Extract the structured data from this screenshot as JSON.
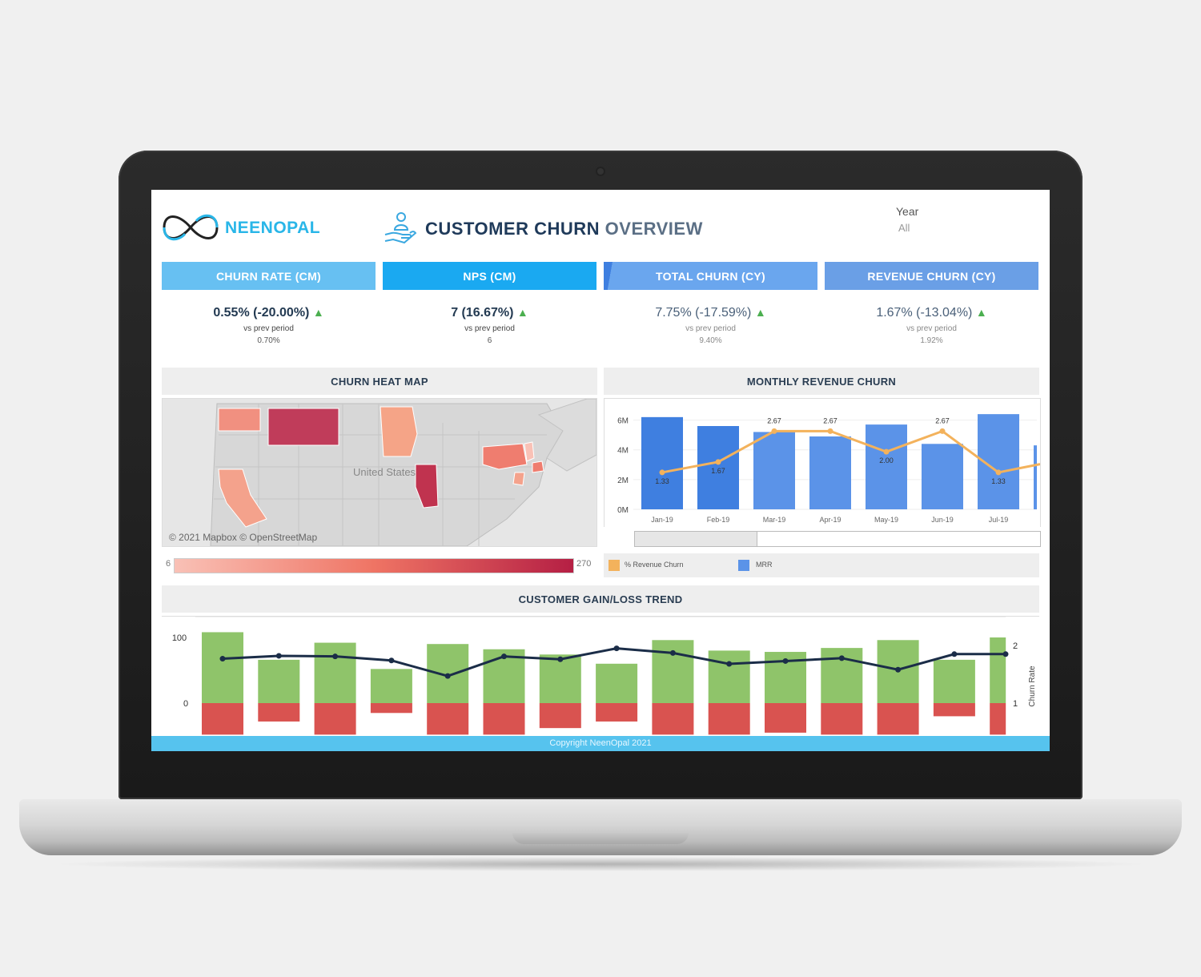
{
  "brand": {
    "name": "NEENOPAL"
  },
  "header": {
    "title_main": "CUSTOMER CHURN",
    "title_accent": "OVERVIEW"
  },
  "filter": {
    "label": "Year",
    "value": "All"
  },
  "kpis": [
    {
      "label": "CHURN RATE (CM)",
      "value": "0.55% (-20.00%)",
      "sub": "vs prev period",
      "prev": "0.70%",
      "color": "#67c0f2"
    },
    {
      "label": "NPS (CM)",
      "value": "7 (16.67%)",
      "sub": "vs prev period",
      "prev": "6",
      "color": "#1aa9f1"
    },
    {
      "label": "TOTAL CHURN (CY)",
      "value": "7.75% (-17.59%)",
      "sub": "vs prev period",
      "prev": "9.40%",
      "color": "#6aa6ee"
    },
    {
      "label": "REVENUE CHURN (CY)",
      "value": "1.67% (-13.04%)",
      "sub": "vs prev period",
      "prev": "1.92%",
      "color": "#6a9fe6"
    }
  ],
  "heatmap": {
    "title": "CHURN HEAT MAP",
    "country_label": "United States",
    "attribution": "© 2021 Mapbox © OpenStreetMap",
    "legend_min": "6",
    "legend_max": "270"
  },
  "revenue_panel": {
    "title": "MONTHLY REVENUE CHURN",
    "legend": {
      "line": "% Revenue Churn",
      "bars": "MRR"
    }
  },
  "trend_panel": {
    "title": "CUSTOMER GAIN/LOSS TREND",
    "y2_label": "Churn Rate"
  },
  "footer": {
    "text": "Copyright NeenOpal 2021"
  },
  "colors": {
    "mrr": "#5b93e8",
    "churn_line": "#f3b25c",
    "gain": "#8fc46a",
    "loss": "#d95350",
    "trend_line": "#1b2d48"
  },
  "chart_data": [
    {
      "type": "bar",
      "title": "MONTHLY REVENUE CHURN",
      "categories": [
        "Jan-19",
        "Feb-19",
        "Mar-19",
        "Apr-19",
        "May-19",
        "Jun-19",
        "Jul-19"
      ],
      "y_ticks": [
        "0M",
        "2M",
        "4M",
        "6M"
      ],
      "ylim": [
        0,
        7
      ],
      "series": [
        {
          "name": "MRR",
          "type": "bar",
          "values": [
            6.2,
            5.6,
            5.2,
            4.9,
            5.7,
            4.4,
            6.4
          ]
        },
        {
          "name": "% Revenue Churn",
          "type": "line",
          "values": [
            1.33,
            1.67,
            2.67,
            2.67,
            2.0,
            2.67,
            1.33
          ],
          "labels": [
            "1.33",
            "1.67",
            "2.67",
            "2.67",
            "2.00",
            "2.67",
            "1.33"
          ]
        }
      ]
    },
    {
      "type": "bar",
      "title": "CUSTOMER GAIN/LOSS TREND",
      "y_ticks": [
        "0",
        "100"
      ],
      "y2_ticks": [
        "1",
        "2"
      ],
      "y2label": "Churn Rate",
      "series": [
        {
          "name": "Gain",
          "type": "bar",
          "values": [
            108,
            66,
            92,
            52,
            90,
            82,
            74,
            60,
            96,
            80,
            78,
            84,
            96,
            66,
            100
          ]
        },
        {
          "name": "Loss",
          "type": "bar",
          "values": [
            -48,
            -28,
            -48,
            -15,
            -48,
            -48,
            -38,
            -28,
            -48,
            -48,
            -45,
            -48,
            -48,
            -20,
            -48
          ]
        },
        {
          "name": "Churn Rate",
          "type": "line",
          "values": [
            1.77,
            1.82,
            1.81,
            1.74,
            1.47,
            1.81,
            1.76,
            1.95,
            1.87,
            1.68,
            1.73,
            1.78,
            1.58,
            1.85,
            1.85
          ]
        }
      ]
    }
  ]
}
